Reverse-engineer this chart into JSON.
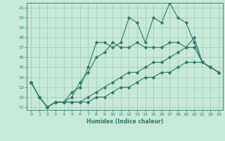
{
  "title": "",
  "xlabel": "Humidex (Indice chaleur)",
  "xlim": [
    -0.5,
    23.5
  ],
  "ylim": [
    10.7,
    21.5
  ],
  "yticks": [
    11,
    12,
    13,
    14,
    15,
    16,
    17,
    18,
    19,
    20,
    21
  ],
  "xticks": [
    0,
    1,
    2,
    3,
    4,
    5,
    6,
    7,
    8,
    9,
    10,
    11,
    12,
    13,
    14,
    15,
    16,
    17,
    18,
    19,
    20,
    21,
    22,
    23
  ],
  "bg_color": "#c8e8d8",
  "grid_color": "#a0c8b8",
  "line_color": "#2e7d6e",
  "line1_x": [
    0,
    1,
    2,
    3,
    4,
    5,
    6,
    7,
    8,
    9,
    10,
    11,
    12,
    13,
    14,
    15,
    16,
    17,
    18,
    19,
    20,
    21,
    22,
    23
  ],
  "line1_y": [
    13.5,
    12.0,
    11.0,
    11.5,
    11.5,
    12.5,
    13.0,
    15.0,
    17.5,
    17.5,
    17.0,
    17.5,
    20.0,
    19.5,
    17.5,
    20.0,
    19.5,
    21.5,
    20.0,
    19.5,
    17.5,
    15.5,
    15.0,
    14.5
  ],
  "line2_x": [
    0,
    1,
    2,
    3,
    4,
    5,
    6,
    7,
    8,
    9,
    10,
    11,
    12,
    13,
    14,
    15,
    16,
    17,
    18,
    19,
    20,
    21,
    22,
    23
  ],
  "line2_y": [
    13.5,
    12.0,
    11.0,
    11.5,
    11.5,
    12.0,
    13.5,
    14.5,
    16.0,
    16.5,
    17.5,
    17.0,
    17.0,
    17.5,
    17.0,
    17.0,
    17.0,
    17.5,
    17.5,
    17.0,
    18.0,
    15.5,
    15.0,
    14.5
  ],
  "line3_x": [
    0,
    1,
    2,
    3,
    4,
    5,
    6,
    7,
    8,
    9,
    10,
    11,
    12,
    13,
    14,
    15,
    16,
    17,
    18,
    19,
    20,
    21,
    22,
    23
  ],
  "line3_y": [
    13.5,
    12.0,
    11.0,
    11.5,
    11.5,
    11.5,
    11.5,
    12.0,
    12.5,
    13.0,
    13.5,
    14.0,
    14.5,
    14.5,
    15.0,
    15.5,
    15.5,
    16.0,
    16.5,
    17.0,
    17.0,
    15.5,
    15.0,
    14.5
  ],
  "line4_x": [
    0,
    1,
    2,
    3,
    4,
    5,
    6,
    7,
    8,
    9,
    10,
    11,
    12,
    13,
    14,
    15,
    16,
    17,
    18,
    19,
    20,
    21,
    22,
    23
  ],
  "line4_y": [
    13.5,
    12.0,
    11.0,
    11.5,
    11.5,
    11.5,
    11.5,
    11.5,
    12.0,
    12.0,
    12.5,
    13.0,
    13.0,
    13.5,
    14.0,
    14.0,
    14.5,
    14.5,
    15.0,
    15.5,
    15.5,
    15.5,
    15.0,
    14.5
  ]
}
